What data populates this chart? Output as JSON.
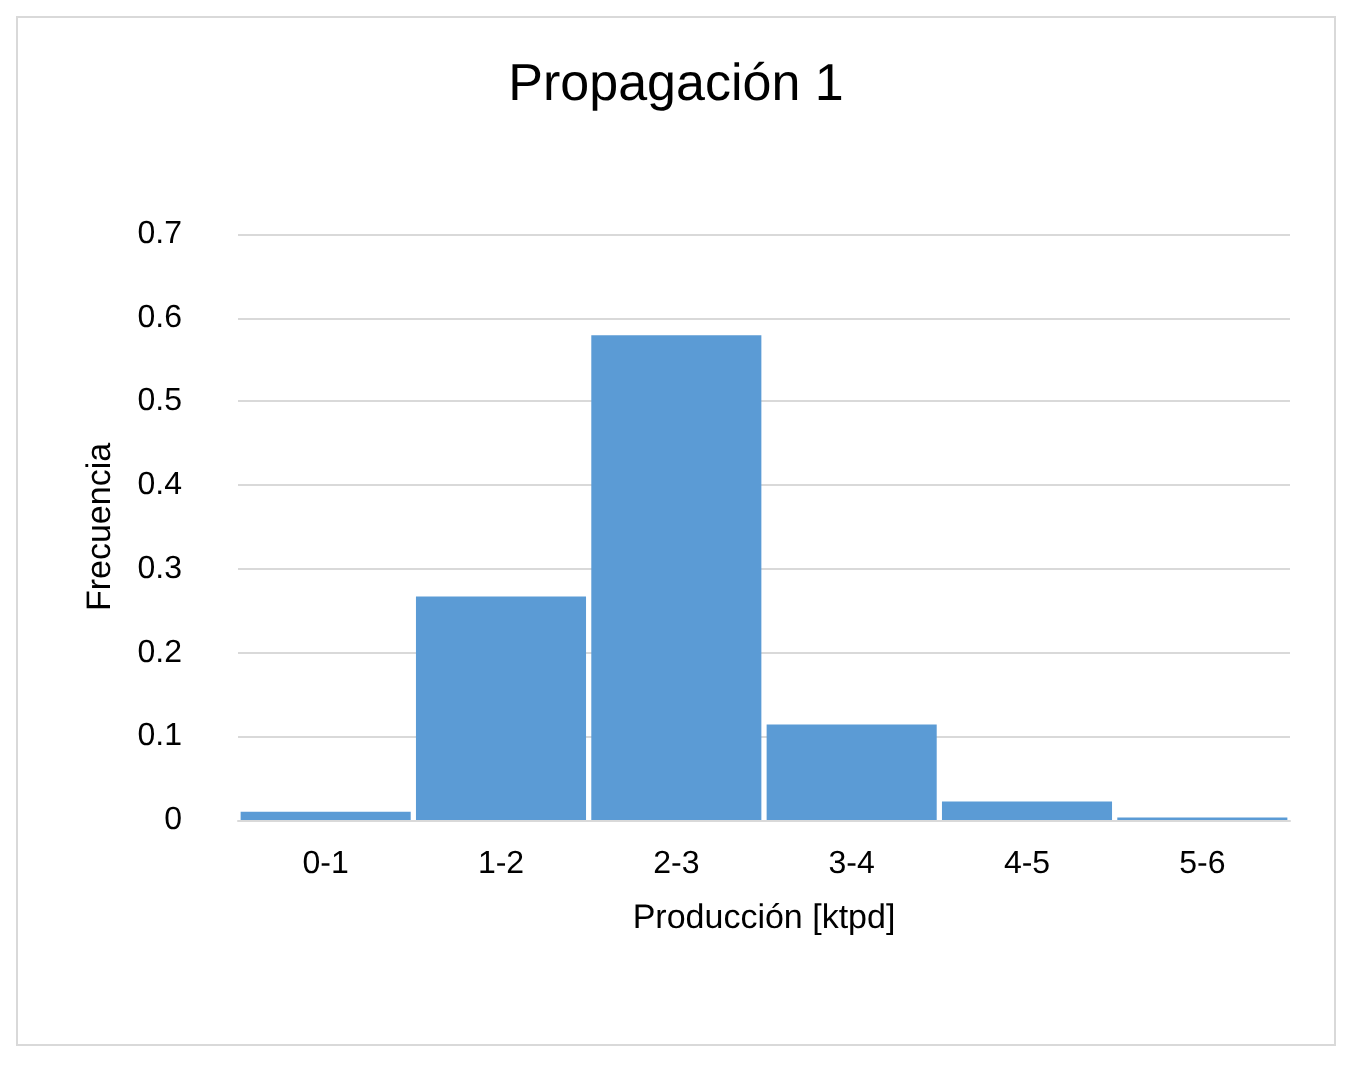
{
  "chart_data": {
    "type": "bar",
    "title": "Propagación 1",
    "xlabel": "Producción [ktpd]",
    "ylabel": "Frecuencia",
    "categories": [
      "0-1",
      "1-2",
      "2-3",
      "3-4",
      "4-5",
      "5-6"
    ],
    "values": [
      0.01,
      0.267,
      0.579,
      0.114,
      0.022,
      0.003
    ],
    "color": "#5b9bd5",
    "ylim": [
      0,
      0.7
    ],
    "yticks": [
      0,
      0.1,
      0.2,
      0.3,
      0.4,
      0.5,
      0.6,
      0.7
    ],
    "grid": "y"
  }
}
